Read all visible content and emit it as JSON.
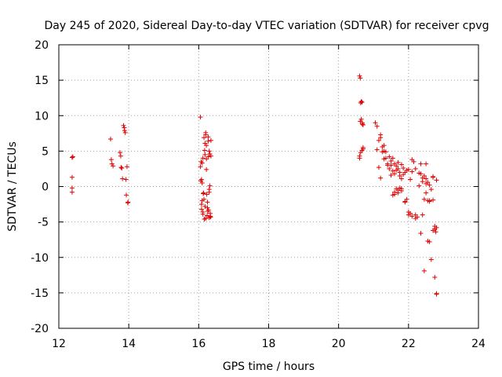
{
  "chart_data": {
    "type": "scatter",
    "title": "Day 245 of 2020, Sidereal Day-to-day VTEC variation (SDTVAR) for receiver cpvg",
    "xlabel": "GPS time / hours",
    "ylabel": "SDTVAR / TECUs",
    "xlim": [
      12,
      24
    ],
    "ylim": [
      -20,
      20
    ],
    "xticks": [
      "12",
      "14",
      "16",
      "18",
      "20",
      "22",
      "24"
    ],
    "yticks": [
      "20",
      "15",
      "10",
      "5",
      "0",
      "-5",
      "-10",
      "-15",
      "-20"
    ],
    "grid": true,
    "marker": "+",
    "color": "#e00000",
    "series": [
      {
        "name": "SDTVAR",
        "x": [
          12.38,
          12.38,
          12.38,
          12.38,
          12.4,
          13.48,
          13.5,
          13.52,
          13.55,
          13.75,
          13.77,
          13.78,
          13.8,
          13.82,
          13.85,
          13.87,
          13.88,
          13.9,
          13.92,
          13.93,
          13.95,
          13.97,
          13.98,
          16.05,
          16.07,
          16.08,
          16.1,
          16.12,
          16.13,
          16.15,
          16.17,
          16.18,
          16.2,
          16.22,
          16.23,
          16.25,
          16.27,
          16.28,
          16.3,
          16.32,
          16.33,
          16.35,
          16.05,
          16.08,
          16.12,
          16.18,
          16.22,
          16.27,
          16.3,
          16.33,
          16.1,
          16.15,
          16.2,
          16.25,
          16.3,
          16.35,
          16.08,
          16.14,
          16.2,
          16.26,
          16.32,
          16.06,
          16.12,
          16.18,
          16.24,
          16.3,
          16.1,
          16.16,
          16.22,
          16.28,
          16.34,
          20.6,
          20.62,
          20.63,
          20.65,
          20.67,
          20.68,
          20.7,
          20.6,
          20.63,
          20.67,
          20.7,
          20.62,
          20.65,
          20.68,
          20.6,
          20.7,
          21.05,
          21.1,
          21.15,
          21.2,
          21.25,
          21.3,
          21.35,
          21.1,
          21.15,
          21.2,
          21.25,
          21.3,
          21.35,
          21.4,
          21.45,
          21.5,
          21.55,
          21.6,
          21.65,
          21.7,
          21.75,
          21.8,
          21.85,
          21.45,
          21.5,
          21.55,
          21.6,
          21.65,
          21.7,
          21.75,
          21.8,
          21.85,
          21.9,
          21.95,
          22.0,
          22.05,
          22.1,
          21.55,
          21.6,
          21.65,
          21.7,
          21.75,
          21.8,
          21.9,
          21.95,
          22.0,
          22.05,
          21.2,
          21.3,
          21.4,
          21.5,
          21.6,
          21.7,
          21.8,
          21.9,
          22.0,
          22.1,
          22.2,
          22.1,
          22.15,
          22.2,
          22.25,
          22.3,
          22.35,
          22.4,
          22.45,
          22.5,
          22.55,
          22.6,
          22.65,
          22.7,
          22.75,
          22.8,
          22.2,
          22.3,
          22.4,
          22.5,
          22.6,
          22.7,
          22.8,
          22.35,
          22.45,
          22.55,
          22.65,
          22.75,
          22.4,
          22.5,
          22.6,
          22.7,
          22.8,
          22.35,
          22.45,
          22.55,
          22.7,
          22.78,
          22.8,
          22.75,
          22.5,
          22.6
        ],
        "y": [
          4.1,
          1.3,
          -0.2,
          -0.8,
          4.2,
          6.7,
          3.8,
          3.2,
          2.9,
          4.8,
          4.3,
          2.7,
          2.6,
          1.1,
          8.6,
          8.3,
          7.9,
          7.6,
          1.0,
          -1.2,
          2.8,
          -2.3,
          -2.2,
          9.8,
          3.5,
          1.0,
          0.5,
          4.0,
          -1.0,
          6.9,
          5.1,
          -2.8,
          7.6,
          3.9,
          -1.1,
          -3.0,
          6.4,
          4.2,
          -4.4,
          0.1,
          -4.2,
          6.5,
          2.8,
          -2.5,
          -3.6,
          4.5,
          5.8,
          7.0,
          -0.4,
          -3.8,
          3.3,
          -1.8,
          -4.5,
          -2.2,
          -0.8,
          4.3,
          -3.2,
          -0.9,
          7.3,
          -3.5,
          4.6,
          0.8,
          -3.9,
          6.1,
          -4.1,
          5.0,
          -2.0,
          -4.6,
          2.4,
          -3.3,
          -4.3,
          15.6,
          15.3,
          11.8,
          9.5,
          11.9,
          9.0,
          8.7,
          4.3,
          4.8,
          5.1,
          5.5,
          9.2,
          12.0,
          8.8,
          4.0,
          5.3,
          9.0,
          8.5,
          6.5,
          7.3,
          4.9,
          5.8,
          4.0,
          5.2,
          2.7,
          1.2,
          5.6,
          3.9,
          4.9,
          3.0,
          2.5,
          3.6,
          4.0,
          3.2,
          2.3,
          3.4,
          2.0,
          3.1,
          1.7,
          4.2,
          3.0,
          2.2,
          1.8,
          2.9,
          2.5,
          1.5,
          1.1,
          2.6,
          2.0,
          2.3,
          2.4,
          1.0,
          2.1,
          -1.2,
          -0.8,
          -0.3,
          -0.5,
          -0.2,
          -0.6,
          -2.1,
          -1.8,
          -3.6,
          -3.8,
          6.9,
          5.0,
          3.2,
          1.6,
          -1.1,
          -0.9,
          -0.3,
          -2.2,
          -4.0,
          -4.2,
          -4.5,
          3.8,
          3.5,
          -4.0,
          -4.3,
          0.1,
          -6.6,
          -4.0,
          -11.9,
          3.2,
          -7.7,
          -7.8,
          -10.3,
          1.4,
          -12.8,
          -15.2,
          2.5,
          1.9,
          1.2,
          0.4,
          0.2,
          1.3,
          0.9,
          1.8,
          -1.8,
          -2.0,
          -0.4,
          -5.6,
          0.7,
          -0.9,
          -2.1,
          -1.9,
          -5.8,
          3.2,
          1.5,
          0.6,
          -6.2,
          -6.4,
          -15.1,
          -6.0,
          1.1,
          -2.0
        ]
      }
    ]
  }
}
